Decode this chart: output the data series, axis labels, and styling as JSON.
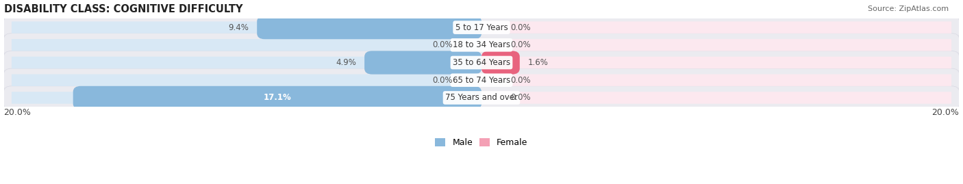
{
  "title": "DISABILITY CLASS: COGNITIVE DIFFICULTY",
  "source": "Source: ZipAtlas.com",
  "categories": [
    "5 to 17 Years",
    "18 to 34 Years",
    "35 to 64 Years",
    "65 to 74 Years",
    "75 Years and over"
  ],
  "male_values": [
    9.4,
    0.0,
    4.9,
    0.0,
    17.1
  ],
  "female_values": [
    0.0,
    0.0,
    1.6,
    0.0,
    0.0
  ],
  "max_value": 20.0,
  "male_bar_color": "#89b8dc",
  "female_bar_color": "#f4a0b5",
  "female_bar_color_strong": "#e8637e",
  "male_bg_color": "#d8e8f5",
  "female_bg_color": "#fce8ef",
  "row_bg_color": "#ebebf0",
  "row_bg_border": "#d8d8e2",
  "label_value_color": "#555555",
  "label_bold_color": "#ffffff",
  "cat_label_color": "#333333",
  "title_fontsize": 10.5,
  "source_fontsize": 8,
  "label_fontsize": 8.5,
  "category_fontsize": 8.5,
  "axis_label_fontsize": 9,
  "x_axis_left": "20.0%",
  "x_axis_right": "20.0%"
}
